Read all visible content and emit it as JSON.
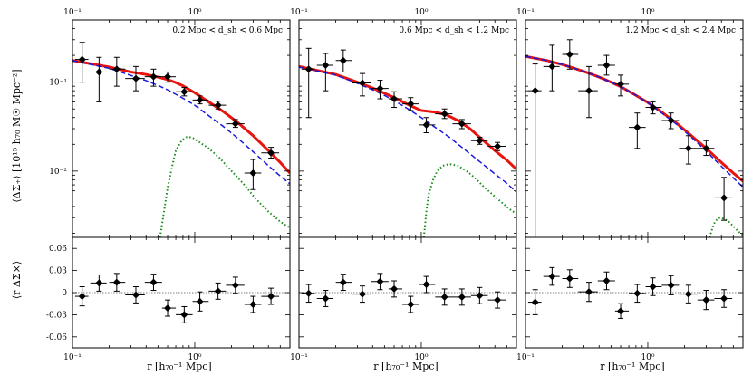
{
  "figure": {
    "ylabel_top": "⟨ΔΣ₊⟩ [10¹⁵ h₇₀ M☉ Mpc⁻²]",
    "ylabel_bottom": "⟨r ΔΣ×⟩",
    "xlabel": "r [h₇₀⁻¹ Mpc]"
  },
  "chart_data": [
    {
      "type": "scatter",
      "title": "0.2 Mpc < d_sh < 0.6 Mpc",
      "xscale": "log",
      "xlim": [
        0.1,
        6.0
      ],
      "xtick_labels": [
        "10⁻¹",
        "10⁰"
      ],
      "top": {
        "yscale": "log",
        "ylim": [
          0.0018,
          0.5
        ],
        "ytick_labels": [
          "10⁻²",
          "10⁻¹"
        ],
        "points": [
          {
            "x": 0.12,
            "y": 0.18,
            "ylo": 0.1,
            "yhi": 0.28,
            "xlo": 0.105,
            "xhi": 0.135
          },
          {
            "x": 0.165,
            "y": 0.13,
            "ylo": 0.06,
            "yhi": 0.19,
            "xlo": 0.14,
            "xhi": 0.19
          },
          {
            "x": 0.23,
            "y": 0.14,
            "ylo": 0.09,
            "yhi": 0.19,
            "xlo": 0.2,
            "xhi": 0.27
          },
          {
            "x": 0.33,
            "y": 0.11,
            "ylo": 0.08,
            "yhi": 0.15,
            "xlo": 0.27,
            "xhi": 0.39
          },
          {
            "x": 0.46,
            "y": 0.115,
            "ylo": 0.09,
            "yhi": 0.14,
            "xlo": 0.39,
            "xhi": 0.54
          },
          {
            "x": 0.6,
            "y": 0.115,
            "ylo": 0.1,
            "yhi": 0.13,
            "xlo": 0.54,
            "xhi": 0.7
          },
          {
            "x": 0.82,
            "y": 0.078,
            "ylo": 0.07,
            "yhi": 0.087,
            "xlo": 0.7,
            "xhi": 0.96
          },
          {
            "x": 1.1,
            "y": 0.063,
            "ylo": 0.057,
            "yhi": 0.07,
            "xlo": 0.96,
            "xhi": 1.3
          },
          {
            "x": 1.55,
            "y": 0.055,
            "ylo": 0.05,
            "yhi": 0.061,
            "xlo": 1.3,
            "xhi": 1.8
          },
          {
            "x": 2.15,
            "y": 0.034,
            "ylo": 0.031,
            "yhi": 0.038,
            "xlo": 1.8,
            "xhi": 2.55
          },
          {
            "x": 3.0,
            "y": 0.0095,
            "ylo": 0.0062,
            "yhi": 0.0135,
            "xlo": 2.55,
            "xhi": 3.5
          },
          {
            "x": 4.2,
            "y": 0.016,
            "ylo": 0.014,
            "yhi": 0.0185,
            "xlo": 3.5,
            "xhi": 4.9
          }
        ],
        "model_total": {
          "x": [
            0.1,
            0.2,
            0.3,
            0.4,
            0.5,
            0.6,
            0.7,
            0.8,
            1.0,
            1.3,
            1.7,
            2.2,
            3.0,
            4.0,
            5.0,
            6.0
          ],
          "y": [
            0.175,
            0.148,
            0.13,
            0.122,
            0.114,
            0.107,
            0.099,
            0.091,
            0.076,
            0.06,
            0.047,
            0.036,
            0.025,
            0.017,
            0.0125,
            0.0095
          ]
        },
        "model_main": {
          "x": [
            0.1,
            0.2,
            0.3,
            0.4,
            0.5,
            0.6,
            0.8,
            1.0,
            1.3,
            1.7,
            2.2,
            3.0,
            4.0,
            5.0,
            6.0
          ],
          "y": [
            0.175,
            0.143,
            0.119,
            0.104,
            0.092,
            0.082,
            0.066,
            0.055,
            0.042,
            0.032,
            0.024,
            0.0165,
            0.0115,
            0.0088,
            0.0072
          ]
        },
        "model_sub": {
          "x": [
            0.52,
            0.56,
            0.6,
            0.65,
            0.7,
            0.78,
            0.85,
            0.95,
            1.1,
            1.3,
            1.6,
            2.0,
            2.5,
            3.0,
            3.5,
            4.0,
            5.0,
            6.0
          ],
          "y": [
            0.0018,
            0.0035,
            0.0065,
            0.011,
            0.017,
            0.022,
            0.024,
            0.024,
            0.021,
            0.018,
            0.014,
            0.01,
            0.0072,
            0.0053,
            0.0042,
            0.0035,
            0.0027,
            0.0023
          ]
        }
      },
      "bottom": {
        "ylim": [
          -0.075,
          0.075
        ],
        "ytick_values": [
          0.06,
          0.03,
          0,
          -0.03,
          -0.06
        ],
        "ytick_labels": [
          "0.06",
          "0.03",
          "0",
          "-0.03",
          "-0.06"
        ],
        "points": [
          {
            "x": 0.12,
            "y": -0.005,
            "err": 0.013,
            "xlo": 0.105,
            "xhi": 0.135
          },
          {
            "x": 0.165,
            "y": 0.013,
            "err": 0.011,
            "xlo": 0.14,
            "xhi": 0.19
          },
          {
            "x": 0.23,
            "y": 0.014,
            "err": 0.012,
            "xlo": 0.2,
            "xhi": 0.27
          },
          {
            "x": 0.33,
            "y": -0.003,
            "err": 0.011,
            "xlo": 0.27,
            "xhi": 0.39
          },
          {
            "x": 0.46,
            "y": 0.014,
            "err": 0.011,
            "xlo": 0.39,
            "xhi": 0.54
          },
          {
            "x": 0.6,
            "y": -0.021,
            "err": 0.011,
            "xlo": 0.54,
            "xhi": 0.7
          },
          {
            "x": 0.82,
            "y": -0.03,
            "err": 0.011,
            "xlo": 0.7,
            "xhi": 0.96
          },
          {
            "x": 1.1,
            "y": -0.012,
            "err": 0.013,
            "xlo": 0.96,
            "xhi": 1.3
          },
          {
            "x": 1.55,
            "y": 0.002,
            "err": 0.011,
            "xlo": 1.3,
            "xhi": 1.8
          },
          {
            "x": 2.15,
            "y": 0.01,
            "err": 0.011,
            "xlo": 1.8,
            "xhi": 2.55
          },
          {
            "x": 3.0,
            "y": -0.016,
            "err": 0.011,
            "xlo": 2.55,
            "xhi": 3.5
          },
          {
            "x": 4.2,
            "y": -0.005,
            "err": 0.011,
            "xlo": 3.5,
            "xhi": 4.9
          }
        ]
      }
    },
    {
      "type": "scatter",
      "title": "0.6 Mpc < d_sh < 1.2 Mpc",
      "xscale": "log",
      "xlim": [
        0.1,
        6.0
      ],
      "xtick_labels": [
        "10⁻¹",
        "10⁰"
      ],
      "top": {
        "yscale": "log",
        "ylim": [
          0.0018,
          0.5
        ],
        "points": [
          {
            "x": 0.12,
            "y": 0.14,
            "ylo": 0.04,
            "yhi": 0.24,
            "xlo": 0.105,
            "xhi": 0.135
          },
          {
            "x": 0.165,
            "y": 0.155,
            "ylo": 0.08,
            "yhi": 0.21,
            "xlo": 0.14,
            "xhi": 0.19
          },
          {
            "x": 0.23,
            "y": 0.175,
            "ylo": 0.13,
            "yhi": 0.23,
            "xlo": 0.2,
            "xhi": 0.27
          },
          {
            "x": 0.33,
            "y": 0.098,
            "ylo": 0.07,
            "yhi": 0.125,
            "xlo": 0.27,
            "xhi": 0.39
          },
          {
            "x": 0.46,
            "y": 0.085,
            "ylo": 0.065,
            "yhi": 0.105,
            "xlo": 0.39,
            "xhi": 0.54
          },
          {
            "x": 0.6,
            "y": 0.065,
            "ylo": 0.052,
            "yhi": 0.078,
            "xlo": 0.54,
            "xhi": 0.7
          },
          {
            "x": 0.82,
            "y": 0.057,
            "ylo": 0.048,
            "yhi": 0.067,
            "xlo": 0.7,
            "xhi": 0.96
          },
          {
            "x": 1.1,
            "y": 0.033,
            "ylo": 0.027,
            "yhi": 0.04,
            "xlo": 0.96,
            "xhi": 1.3
          },
          {
            "x": 1.55,
            "y": 0.044,
            "ylo": 0.039,
            "yhi": 0.05,
            "xlo": 1.3,
            "xhi": 1.8
          },
          {
            "x": 2.15,
            "y": 0.034,
            "ylo": 0.03,
            "yhi": 0.038,
            "xlo": 1.8,
            "xhi": 2.55
          },
          {
            "x": 3.0,
            "y": 0.022,
            "ylo": 0.02,
            "yhi": 0.024,
            "xlo": 2.55,
            "xhi": 3.5
          },
          {
            "x": 4.2,
            "y": 0.019,
            "ylo": 0.017,
            "yhi": 0.021,
            "xlo": 3.5,
            "xhi": 4.9
          }
        ],
        "model_total": {
          "x": [
            0.1,
            0.2,
            0.3,
            0.4,
            0.5,
            0.6,
            0.8,
            1.0,
            1.3,
            1.6,
            2.0,
            2.5,
            3.0,
            4.0,
            5.0,
            6.0
          ],
          "y": [
            0.15,
            0.122,
            0.1,
            0.086,
            0.075,
            0.067,
            0.055,
            0.048,
            0.046,
            0.043,
            0.037,
            0.03,
            0.024,
            0.017,
            0.0133,
            0.0105
          ]
        },
        "model_main": {
          "x": [
            0.1,
            0.2,
            0.3,
            0.4,
            0.5,
            0.6,
            0.8,
            1.0,
            1.3,
            1.7,
            2.2,
            3.0,
            4.0,
            5.0,
            6.0
          ],
          "y": [
            0.148,
            0.12,
            0.097,
            0.082,
            0.071,
            0.062,
            0.049,
            0.04,
            0.031,
            0.024,
            0.018,
            0.0128,
            0.0093,
            0.0073,
            0.0058
          ]
        },
        "model_sub": {
          "x": [
            1.05,
            1.1,
            1.15,
            1.25,
            1.35,
            1.5,
            1.7,
            2.0,
            2.4,
            2.8,
            3.2,
            3.8,
            4.5,
            5.2,
            6.0
          ],
          "y": [
            0.0018,
            0.0035,
            0.0055,
            0.008,
            0.01,
            0.0115,
            0.012,
            0.0115,
            0.0098,
            0.0082,
            0.0068,
            0.0055,
            0.0045,
            0.0038,
            0.0033
          ]
        }
      },
      "bottom": {
        "ylim": [
          -0.075,
          0.075
        ],
        "points": [
          {
            "x": 0.12,
            "y": -0.001,
            "err": 0.012,
            "xlo": 0.105,
            "xhi": 0.135
          },
          {
            "x": 0.165,
            "y": -0.008,
            "err": 0.011,
            "xlo": 0.14,
            "xhi": 0.19
          },
          {
            "x": 0.23,
            "y": 0.014,
            "err": 0.011,
            "xlo": 0.2,
            "xhi": 0.27
          },
          {
            "x": 0.33,
            "y": -0.002,
            "err": 0.011,
            "xlo": 0.27,
            "xhi": 0.39
          },
          {
            "x": 0.46,
            "y": 0.015,
            "err": 0.011,
            "xlo": 0.39,
            "xhi": 0.54
          },
          {
            "x": 0.6,
            "y": 0.005,
            "err": 0.011,
            "xlo": 0.54,
            "xhi": 0.7
          },
          {
            "x": 0.82,
            "y": -0.016,
            "err": 0.011,
            "xlo": 0.7,
            "xhi": 0.96
          },
          {
            "x": 1.1,
            "y": 0.011,
            "err": 0.011,
            "xlo": 0.96,
            "xhi": 1.3
          },
          {
            "x": 1.55,
            "y": -0.006,
            "err": 0.011,
            "xlo": 1.3,
            "xhi": 1.8
          },
          {
            "x": 2.15,
            "y": -0.006,
            "err": 0.011,
            "xlo": 1.8,
            "xhi": 2.55
          },
          {
            "x": 3.0,
            "y": -0.004,
            "err": 0.011,
            "xlo": 2.55,
            "xhi": 3.5
          },
          {
            "x": 4.2,
            "y": -0.01,
            "err": 0.011,
            "xlo": 3.5,
            "xhi": 4.9
          }
        ]
      }
    },
    {
      "type": "scatter",
      "title": "1.2 Mpc < d_sh < 2.4 Mpc",
      "xscale": "log",
      "xlim": [
        0.1,
        6.0
      ],
      "xtick_labels": [
        "10⁻¹",
        "10⁰"
      ],
      "top": {
        "yscale": "log",
        "ylim": [
          0.0018,
          0.5
        ],
        "points": [
          {
            "x": 0.12,
            "y": 0.08,
            "ylo": 0.0018,
            "yhi": 0.16,
            "xlo": 0.105,
            "xhi": 0.135
          },
          {
            "x": 0.165,
            "y": 0.15,
            "ylo": 0.08,
            "yhi": 0.26,
            "xlo": 0.14,
            "xhi": 0.19
          },
          {
            "x": 0.23,
            "y": 0.205,
            "ylo": 0.14,
            "yhi": 0.3,
            "xlo": 0.2,
            "xhi": 0.27
          },
          {
            "x": 0.33,
            "y": 0.08,
            "ylo": 0.04,
            "yhi": 0.15,
            "xlo": 0.27,
            "xhi": 0.39
          },
          {
            "x": 0.46,
            "y": 0.155,
            "ylo": 0.12,
            "yhi": 0.2,
            "xlo": 0.39,
            "xhi": 0.54
          },
          {
            "x": 0.6,
            "y": 0.095,
            "ylo": 0.07,
            "yhi": 0.12,
            "xlo": 0.54,
            "xhi": 0.7
          },
          {
            "x": 0.82,
            "y": 0.031,
            "ylo": 0.018,
            "yhi": 0.045,
            "xlo": 0.7,
            "xhi": 0.96
          },
          {
            "x": 1.1,
            "y": 0.052,
            "ylo": 0.044,
            "yhi": 0.06,
            "xlo": 0.96,
            "xhi": 1.3
          },
          {
            "x": 1.55,
            "y": 0.037,
            "ylo": 0.03,
            "yhi": 0.045,
            "xlo": 1.3,
            "xhi": 1.8
          },
          {
            "x": 2.15,
            "y": 0.018,
            "ylo": 0.012,
            "yhi": 0.025,
            "xlo": 1.8,
            "xhi": 2.55
          },
          {
            "x": 3.0,
            "y": 0.018,
            "ylo": 0.015,
            "yhi": 0.022,
            "xlo": 2.55,
            "xhi": 3.5
          },
          {
            "x": 4.2,
            "y": 0.005,
            "ylo": 0.0028,
            "yhi": 0.0085,
            "xlo": 3.5,
            "xhi": 4.9
          }
        ],
        "model_total": {
          "x": [
            0.1,
            0.15,
            0.2,
            0.3,
            0.4,
            0.5,
            0.6,
            0.8,
            1.0,
            1.3,
            1.7,
            2.2,
            3.0,
            4.0,
            5.0,
            6.0
          ],
          "y": [
            0.195,
            0.175,
            0.158,
            0.132,
            0.114,
            0.1,
            0.089,
            0.071,
            0.059,
            0.046,
            0.035,
            0.026,
            0.018,
            0.0125,
            0.0095,
            0.0077
          ]
        },
        "model_main": {
          "x": [
            0.1,
            0.15,
            0.2,
            0.3,
            0.4,
            0.5,
            0.6,
            0.8,
            1.0,
            1.3,
            1.7,
            2.2,
            3.0,
            4.0,
            5.0,
            6.0
          ],
          "y": [
            0.195,
            0.175,
            0.158,
            0.132,
            0.114,
            0.1,
            0.089,
            0.071,
            0.059,
            0.045,
            0.034,
            0.025,
            0.0168,
            0.0113,
            0.0084,
            0.0066
          ]
        },
        "model_sub": {
          "x": [
            3.2,
            3.35,
            3.5,
            3.7,
            3.9,
            4.2,
            4.6,
            5.0,
            5.5,
            6.0
          ],
          "y": [
            0.0018,
            0.0022,
            0.0026,
            0.0029,
            0.003,
            0.0029,
            0.0027,
            0.0024,
            0.0021,
            0.0019
          ]
        }
      },
      "bottom": {
        "ylim": [
          -0.075,
          0.075
        ],
        "points": [
          {
            "x": 0.12,
            "y": -0.013,
            "err": 0.017,
            "xlo": 0.105,
            "xhi": 0.135
          },
          {
            "x": 0.165,
            "y": 0.022,
            "err": 0.012,
            "xlo": 0.14,
            "xhi": 0.19
          },
          {
            "x": 0.23,
            "y": 0.019,
            "err": 0.012,
            "xlo": 0.2,
            "xhi": 0.27
          },
          {
            "x": 0.33,
            "y": 0.001,
            "err": 0.013,
            "xlo": 0.27,
            "xhi": 0.39
          },
          {
            "x": 0.46,
            "y": 0.016,
            "err": 0.012,
            "xlo": 0.39,
            "xhi": 0.54
          },
          {
            "x": 0.6,
            "y": -0.025,
            "err": 0.01,
            "xlo": 0.54,
            "xhi": 0.7
          },
          {
            "x": 0.82,
            "y": -0.001,
            "err": 0.012,
            "xlo": 0.7,
            "xhi": 0.96
          },
          {
            "x": 1.1,
            "y": 0.008,
            "err": 0.012,
            "xlo": 0.96,
            "xhi": 1.3
          },
          {
            "x": 1.55,
            "y": 0.01,
            "err": 0.013,
            "xlo": 1.3,
            "xhi": 1.8
          },
          {
            "x": 2.15,
            "y": -0.002,
            "err": 0.012,
            "xlo": 1.8,
            "xhi": 2.55
          },
          {
            "x": 3.0,
            "y": -0.01,
            "err": 0.013,
            "xlo": 2.55,
            "xhi": 3.5
          },
          {
            "x": 4.2,
            "y": -0.008,
            "err": 0.012,
            "xlo": 3.5,
            "xhi": 4.9
          }
        ]
      }
    }
  ],
  "colors": {
    "model_total": "#e8140e",
    "model_main": "#1a1adc",
    "model_sub": "#1a8c1a",
    "points": "#000000",
    "zero_line": "#555555"
  }
}
